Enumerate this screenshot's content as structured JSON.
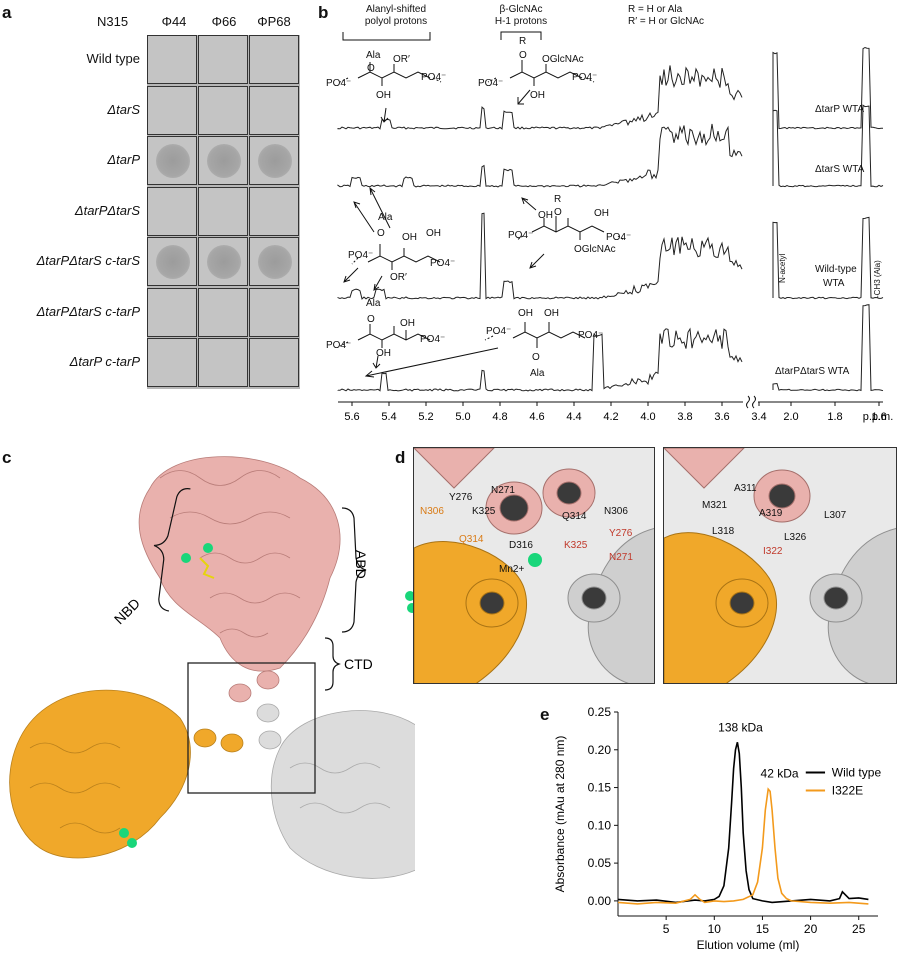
{
  "panels": {
    "a": "a",
    "b": "b",
    "c": "c",
    "d": "d",
    "e": "e"
  },
  "panel_a": {
    "strain_header": "N315",
    "phages": [
      "Φ44",
      "Φ66",
      "ΦP68"
    ],
    "rows": [
      {
        "label": "Wild type",
        "plaques": [
          false,
          false,
          false
        ]
      },
      {
        "label": "ΔtarS",
        "plaques": [
          false,
          false,
          false
        ]
      },
      {
        "label": "ΔtarP",
        "plaques": [
          true,
          true,
          true
        ]
      },
      {
        "label": "ΔtarPΔtarS",
        "plaques": [
          false,
          false,
          false
        ]
      },
      {
        "label": "ΔtarPΔtarS c-tarS",
        "plaques": [
          true,
          true,
          true
        ]
      },
      {
        "label": "ΔtarPΔtarS c-tarP",
        "plaques": [
          false,
          false,
          false
        ]
      },
      {
        "label": "ΔtarP c-tarP",
        "plaques": [
          false,
          false,
          false
        ]
      }
    ]
  },
  "panel_b": {
    "header_left": "Alanyl-shifted\npolyol protons",
    "header_mid": "β-GlcNAc\nH-1 protons",
    "r_note": "R = H or Ala",
    "rprime_note": "R′ = H or GlcNAc",
    "trace_labels": [
      "ΔtarP WTA",
      "ΔtarS WTA",
      "Wild-type\nWTA",
      "ΔtarPΔtarS WTA"
    ],
    "n_acetyl": "N-acetyl",
    "ch3_ala": "-CH3 (Ala)",
    "x_ticks_left": [
      "5.6",
      "5.4",
      "5.2",
      "5.0",
      "4.8",
      "4.6",
      "4.4",
      "4.2",
      "4.0",
      "3.8",
      "3.6",
      "3.4"
    ],
    "x_ticks_right": [
      "2.0",
      "1.8",
      "1.6"
    ],
    "x_unit": "p.p.m.",
    "struct_labels": {
      "ala": "Ala",
      "o": "O",
      "or": "OR′",
      "oh": "OH",
      "po4": "PO4−",
      "r": "R",
      "oglcnac": "OGlcNAc"
    }
  },
  "panel_c": {
    "labels": {
      "nbd": "NBD",
      "abd": "ABD",
      "ctd": "CTD"
    }
  },
  "panel_d": {
    "left_labels": [
      "Y276",
      "N271",
      "K325",
      "N306",
      "Q314",
      "D316",
      "Mn2+",
      "Q314",
      "N306",
      "Y276",
      "K325",
      "N271"
    ],
    "right_labels": [
      "A311",
      "M321",
      "A319",
      "L307",
      "L318",
      "L326",
      "I322"
    ]
  },
  "panel_e": {
    "ylabel": "Absorbance (mAu at 280 nm)",
    "xlabel": "Elution volume (ml)",
    "peak_label_1": "138 kDa",
    "peak_label_2": "42 kDa"
  },
  "colors": {
    "wild_type": "#000000",
    "i322e": "#f39a1c",
    "pink": "#e9a9a6",
    "orange": "#f0a82a",
    "grey": "#d6d6d6"
  },
  "chart_data": {
    "type": "line",
    "xlim": [
      0,
      27
    ],
    "ylim": [
      -0.02,
      0.25
    ],
    "x_ticks": [
      5,
      10,
      15,
      20,
      25
    ],
    "y_ticks": [
      0.0,
      0.05,
      0.1,
      0.15,
      0.2,
      0.25
    ],
    "xlabel": "Elution volume (ml)",
    "ylabel": "Absorbance (mAu at 280 nm)",
    "legend_position": "right",
    "series": [
      {
        "name": "Wild type",
        "color": "#000000",
        "x": [
          0,
          2,
          4,
          6,
          8,
          9,
          10,
          10.5,
          11,
          11.5,
          11.8,
          12,
          12.2,
          12.4,
          12.6,
          12.8,
          13,
          13.3,
          13.6,
          14,
          15,
          16,
          18,
          20,
          22,
          23,
          23.3,
          24,
          25,
          26
        ],
        "y": [
          0.002,
          0.0,
          0.001,
          -0.002,
          0.001,
          0.0,
          0.002,
          0.006,
          0.02,
          0.07,
          0.13,
          0.175,
          0.2,
          0.21,
          0.195,
          0.15,
          0.09,
          0.04,
          0.015,
          0.003,
          0.0,
          -0.002,
          0.0,
          0.002,
          0.0,
          0.003,
          0.012,
          0.003,
          0.004,
          0.002
        ]
      },
      {
        "name": "I322E",
        "color": "#f39a1c",
        "x": [
          0,
          2,
          4,
          6,
          7.5,
          8,
          8.5,
          9,
          10,
          11,
          12,
          13,
          14,
          14.5,
          15,
          15.3,
          15.6,
          15.8,
          16,
          16.3,
          16.6,
          17,
          17.5,
          18,
          20,
          22,
          24,
          25,
          26
        ],
        "y": [
          -0.002,
          -0.004,
          -0.002,
          -0.003,
          0.002,
          0.008,
          0.002,
          -0.002,
          0.0,
          -0.001,
          0.0,
          0.002,
          0.008,
          0.025,
          0.07,
          0.12,
          0.148,
          0.145,
          0.12,
          0.07,
          0.03,
          0.01,
          0.003,
          0.0,
          -0.002,
          -0.003,
          -0.002,
          -0.003,
          -0.004
        ]
      }
    ]
  }
}
